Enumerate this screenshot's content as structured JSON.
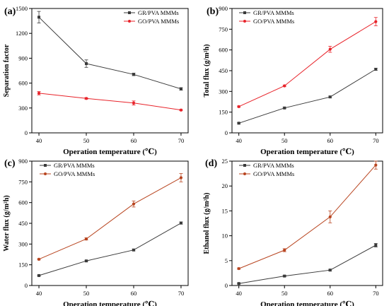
{
  "chart_data": [
    {
      "type": "line",
      "panel": "(a)",
      "xlabel": "Operation temperature (℃)",
      "ylabel": "Separation factor",
      "x": [
        40,
        50,
        60,
        70
      ],
      "xticks": [
        "40",
        "50",
        "60",
        "70"
      ],
      "ylim": [
        0,
        1500
      ],
      "yticks": [
        "0",
        "300",
        "600",
        "900",
        "1200",
        "1500"
      ],
      "legend_position": "top-right",
      "series": [
        {
          "name": "GR/PVA MMMs",
          "color": "#3a3a3a",
          "values": [
            1395,
            835,
            705,
            530
          ],
          "errors": [
            70,
            45,
            15,
            15
          ]
        },
        {
          "name": "GO/PVA MMMs",
          "color": "#e8232a",
          "values": [
            478,
            415,
            360,
            275
          ],
          "errors": [
            20,
            10,
            25,
            8
          ]
        }
      ]
    },
    {
      "type": "line",
      "panel": "(b)",
      "xlabel": "Operation temperature (℃)",
      "ylabel": "Total flux (g/m²h)",
      "x": [
        40,
        50,
        60,
        70
      ],
      "xticks": [
        "40",
        "50",
        "60",
        "70"
      ],
      "ylim": [
        0,
        900
      ],
      "yticks": [
        "0",
        "150",
        "300",
        "450",
        "600",
        "750",
        "900"
      ],
      "legend_position": "top-left",
      "series": [
        {
          "name": "GR/PVA MMMs",
          "color": "#3a3a3a",
          "values": [
            70,
            180,
            260,
            460
          ],
          "errors": [
            4,
            5,
            6,
            8
          ]
        },
        {
          "name": "GO/PVA MMMs",
          "color": "#e8232a",
          "values": [
            190,
            340,
            605,
            805
          ],
          "errors": [
            5,
            6,
            22,
            30
          ]
        }
      ]
    },
    {
      "type": "line",
      "panel": "(c)",
      "xlabel": "Operation temperature (℃)",
      "ylabel": "Water flux (g/m²h)",
      "x": [
        40,
        50,
        60,
        70
      ],
      "xticks": [
        "40",
        "50",
        "60",
        "70"
      ],
      "ylim": [
        0,
        900
      ],
      "yticks": [
        "0",
        "150",
        "300",
        "450",
        "600",
        "750",
        "900"
      ],
      "legend_position": "top-left",
      "series": [
        {
          "name": "GR/PVA MMMs",
          "color": "#3a3a3a",
          "values": [
            72,
            178,
            257,
            452
          ],
          "errors": [
            4,
            5,
            6,
            8
          ]
        },
        {
          "name": "GO/PVA MMMs",
          "color": "#b8441f",
          "values": [
            190,
            337,
            590,
            780
          ],
          "errors": [
            5,
            8,
            22,
            30
          ]
        }
      ]
    },
    {
      "type": "line",
      "panel": "(d)",
      "xlabel": "Operation temperature (℃)",
      "ylabel": "Ethanol flux (g/m²h)",
      "x": [
        40,
        50,
        60,
        70
      ],
      "xticks": [
        "40",
        "50",
        "60",
        "70"
      ],
      "ylim": [
        0,
        25
      ],
      "yticks": [
        "0",
        "5",
        "10",
        "15",
        "20",
        "25"
      ],
      "legend_position": "top-left",
      "series": [
        {
          "name": "GR/PVA MMMs",
          "color": "#3a3a3a",
          "values": [
            0.4,
            1.9,
            3.1,
            8.1
          ],
          "errors": [
            0.1,
            0.15,
            0.15,
            0.35
          ]
        },
        {
          "name": "GO/PVA MMMs",
          "color": "#b8441f",
          "values": [
            3.4,
            7.1,
            13.8,
            24.2
          ],
          "errors": [
            0.15,
            0.3,
            1.2,
            0.8
          ]
        }
      ]
    }
  ]
}
